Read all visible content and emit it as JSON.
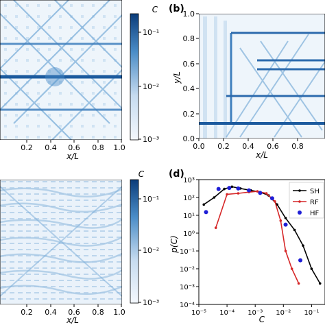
{
  "panels": {
    "a": {
      "xlabel": "x/L",
      "xticks": [
        "0.2",
        "0.4",
        "0.6",
        "0.8",
        "1.0"
      ]
    },
    "b": {
      "label": "(b)",
      "xlabel": "x/L",
      "ylabel": "y/L",
      "xticks": [
        "0.0",
        "0.2",
        "0.4",
        "0.6",
        "0.8"
      ],
      "yticks": [
        "0.0",
        "0.2",
        "0.4",
        "0.6",
        "0.8",
        "1.0"
      ]
    },
    "c": {
      "xlabel": "x/L",
      "xticks": [
        "0.2",
        "0.4",
        "0.6",
        "0.8",
        "1.0"
      ]
    }
  },
  "colorbar_top": {
    "label": "C",
    "ticks": [
      "10⁻¹",
      "10⁻²",
      "10⁻³"
    ],
    "color_low": "#f4f8fd",
    "color_high": "#0b3c7a"
  },
  "colorbar_bottom": {
    "label": "C",
    "ticks": [
      "10⁻¹",
      "10⁻²",
      "10⁻³"
    ],
    "color_low": "#f4f8fd",
    "color_high": "#0b3c7a"
  },
  "chart_data": {
    "type": "line",
    "label": "(d)",
    "xlabel": "C",
    "ylabel": "p(C)",
    "xscale": "log",
    "yscale": "log",
    "xlim": [
      1e-05,
      0.3
    ],
    "ylim": [
      0.0001,
      1000
    ],
    "xticks": [
      "10⁻⁵",
      "10⁻⁴",
      "10⁻³",
      "10⁻²",
      "10⁻¹"
    ],
    "yticks": [
      "10⁻⁴",
      "10⁻³",
      "10⁻²",
      "10⁻¹",
      "10⁰",
      "10¹",
      "10²",
      "10³"
    ],
    "legend_position": "top-right",
    "series": [
      {
        "name": "SH",
        "color": "#000000",
        "style": "line-marker",
        "x": [
          1.5e-05,
          3.5e-05,
          8e-05,
          0.00015,
          0.0003,
          0.0007,
          0.0015,
          0.003,
          0.006,
          0.012,
          0.025,
          0.05,
          0.1,
          0.2
        ],
        "y": [
          40,
          100,
          300,
          400,
          320,
          250,
          200,
          130,
          40,
          7,
          1.5,
          0.2,
          0.01,
          0.0015
        ]
      },
      {
        "name": "RF",
        "color": "#d62728",
        "style": "line-marker",
        "x": [
          4e-05,
          0.0001,
          0.00025,
          0.0006,
          0.0012,
          0.0025,
          0.005,
          0.008,
          0.012,
          0.02,
          0.035
        ],
        "y": [
          2,
          150,
          170,
          200,
          220,
          170,
          60,
          5,
          0.1,
          0.01,
          0.0015
        ]
      },
      {
        "name": "HF",
        "color": "#1f1fd6",
        "style": "marker",
        "x": [
          1.8e-05,
          5e-05,
          0.00012,
          0.00025,
          0.0006,
          0.0015,
          0.004,
          0.012,
          0.04
        ],
        "y": [
          15,
          300,
          340,
          320,
          250,
          180,
          90,
          3,
          0.03
        ]
      }
    ]
  }
}
